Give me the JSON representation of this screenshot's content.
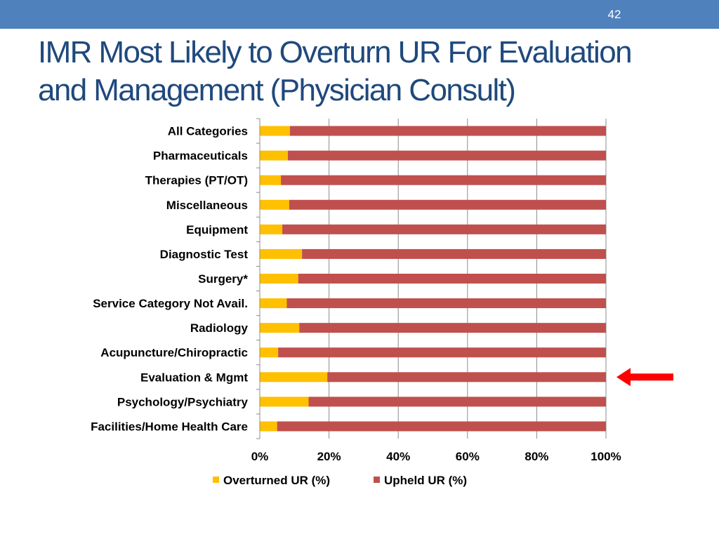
{
  "slide": {
    "page_number": "42",
    "title_line1": "IMR Most Likely to Overturn UR For Evaluation",
    "title_line2": "and Management (Physician Consult)"
  },
  "chart_data": {
    "type": "bar",
    "orientation": "horizontal",
    "stacked": "percent",
    "title": "",
    "xlabel": "",
    "ylabel": "",
    "xlim": [
      0,
      100
    ],
    "x_ticks": [
      "0%",
      "20%",
      "40%",
      "60%",
      "80%",
      "100%"
    ],
    "grid": true,
    "legend_position": "bottom",
    "categories": [
      "All Categories",
      "Pharmaceuticals",
      "Therapies (PT/OT)",
      "Miscellaneous",
      "Equipment",
      "Diagnostic Test",
      "Surgery*",
      "Service Category Not Avail.",
      "Radiology",
      "Acupuncture/Chiropractic",
      "Evaluation & Mgmt",
      "Psychology/Psychiatry",
      "Facilities/Home Health Care"
    ],
    "series": [
      {
        "name": "Overturned UR  (%)",
        "color": "#ffc000",
        "values": [
          8.7,
          8.1,
          6.1,
          8.5,
          6.5,
          12.2,
          11.1,
          7.8,
          11.4,
          5.3,
          19.5,
          14.1,
          5.0
        ]
      },
      {
        "name": "Upheld UR (%)",
        "color": "#c0504d",
        "values": [
          91.3,
          91.9,
          93.9,
          91.5,
          93.5,
          87.8,
          88.9,
          92.2,
          88.6,
          94.7,
          80.5,
          85.9,
          95.0
        ]
      }
    ],
    "annotation": {
      "type": "arrow",
      "points_to": "Evaluation & Mgmt",
      "color": "#ff0000"
    }
  }
}
